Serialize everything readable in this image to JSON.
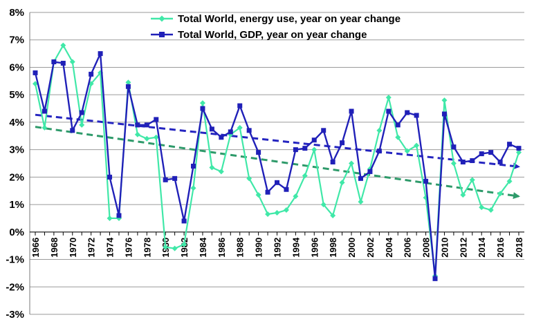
{
  "chart_data": {
    "type": "line",
    "x": [
      1966,
      1967,
      1968,
      1969,
      1970,
      1971,
      1972,
      1973,
      1974,
      1975,
      1976,
      1977,
      1978,
      1979,
      1980,
      1981,
      1982,
      1983,
      1984,
      1985,
      1986,
      1987,
      1988,
      1989,
      1990,
      1991,
      1992,
      1993,
      1994,
      1995,
      1996,
      1997,
      1998,
      1999,
      2000,
      2001,
      2002,
      2003,
      2004,
      2005,
      2006,
      2007,
      2008,
      2009,
      2010,
      2011,
      2012,
      2013,
      2014,
      2015,
      2016,
      2017,
      2018
    ],
    "x_tick_labels": [
      "1966",
      "1968",
      "1970",
      "1972",
      "1974",
      "1976",
      "1978",
      "1980",
      "1982",
      "1984",
      "1986",
      "1988",
      "1990",
      "1992",
      "1994",
      "1996",
      "1998",
      "2000",
      "2002",
      "2004",
      "2006",
      "2008",
      "2010",
      "2012",
      "2014",
      "2016",
      "2018"
    ],
    "y_tick_labels": [
      "8%",
      "7%",
      "6%",
      "5%",
      "4%",
      "3%",
      "2%",
      "1%",
      "0%",
      "-1%",
      "-2%",
      "-3%"
    ],
    "ylim": [
      -3,
      8
    ],
    "y_unit": "%",
    "grid": "horizontal",
    "legend_position": "top-center",
    "series": [
      {
        "name": "Total World, energy use, year on year change",
        "color": "#40e8a8",
        "marker": "diamond",
        "values": [
          5.4,
          3.8,
          6.2,
          6.8,
          6.2,
          3.9,
          5.4,
          5.8,
          0.5,
          0.5,
          5.45,
          3.55,
          3.4,
          3.45,
          -0.55,
          -0.6,
          -0.45,
          1.6,
          4.7,
          2.35,
          2.2,
          3.55,
          3.8,
          1.95,
          1.35,
          0.65,
          0.7,
          0.8,
          1.3,
          2.05,
          3.0,
          1.0,
          0.6,
          1.8,
          2.5,
          1.1,
          2.3,
          3.7,
          4.9,
          3.45,
          2.95,
          3.15,
          1.25,
          -1.6,
          4.8,
          2.5,
          1.35,
          1.9,
          0.9,
          0.8,
          1.4,
          1.85,
          2.9
        ]
      },
      {
        "name": "Total World, GDP, year on year change",
        "color": "#2020b8",
        "marker": "square",
        "values": [
          5.8,
          4.4,
          6.2,
          6.15,
          3.7,
          4.35,
          5.75,
          6.5,
          2.0,
          0.6,
          5.3,
          3.9,
          3.9,
          4.1,
          1.9,
          1.95,
          0.4,
          2.4,
          4.5,
          3.75,
          3.45,
          3.65,
          4.6,
          3.7,
          2.9,
          1.45,
          1.8,
          1.55,
          3.0,
          3.05,
          3.35,
          3.7,
          2.55,
          3.25,
          4.4,
          1.95,
          2.2,
          2.95,
          4.4,
          3.9,
          4.35,
          4.25,
          1.85,
          -1.7,
          4.3,
          3.1,
          2.55,
          2.6,
          2.85,
          2.9,
          2.55,
          3.2,
          3.05
        ]
      }
    ],
    "trendlines": [
      {
        "series": "Total World, GDP, year on year change",
        "color": "#2525c0",
        "style": "dashed-arrow",
        "x": [
          1966,
          2018
        ],
        "y": [
          4.27,
          2.38
        ]
      },
      {
        "series": "Total World, energy use, year on year change",
        "color": "#2e9a6a",
        "style": "dashed-arrow",
        "x": [
          1966,
          2018
        ],
        "y": [
          3.83,
          1.3
        ]
      }
    ]
  }
}
